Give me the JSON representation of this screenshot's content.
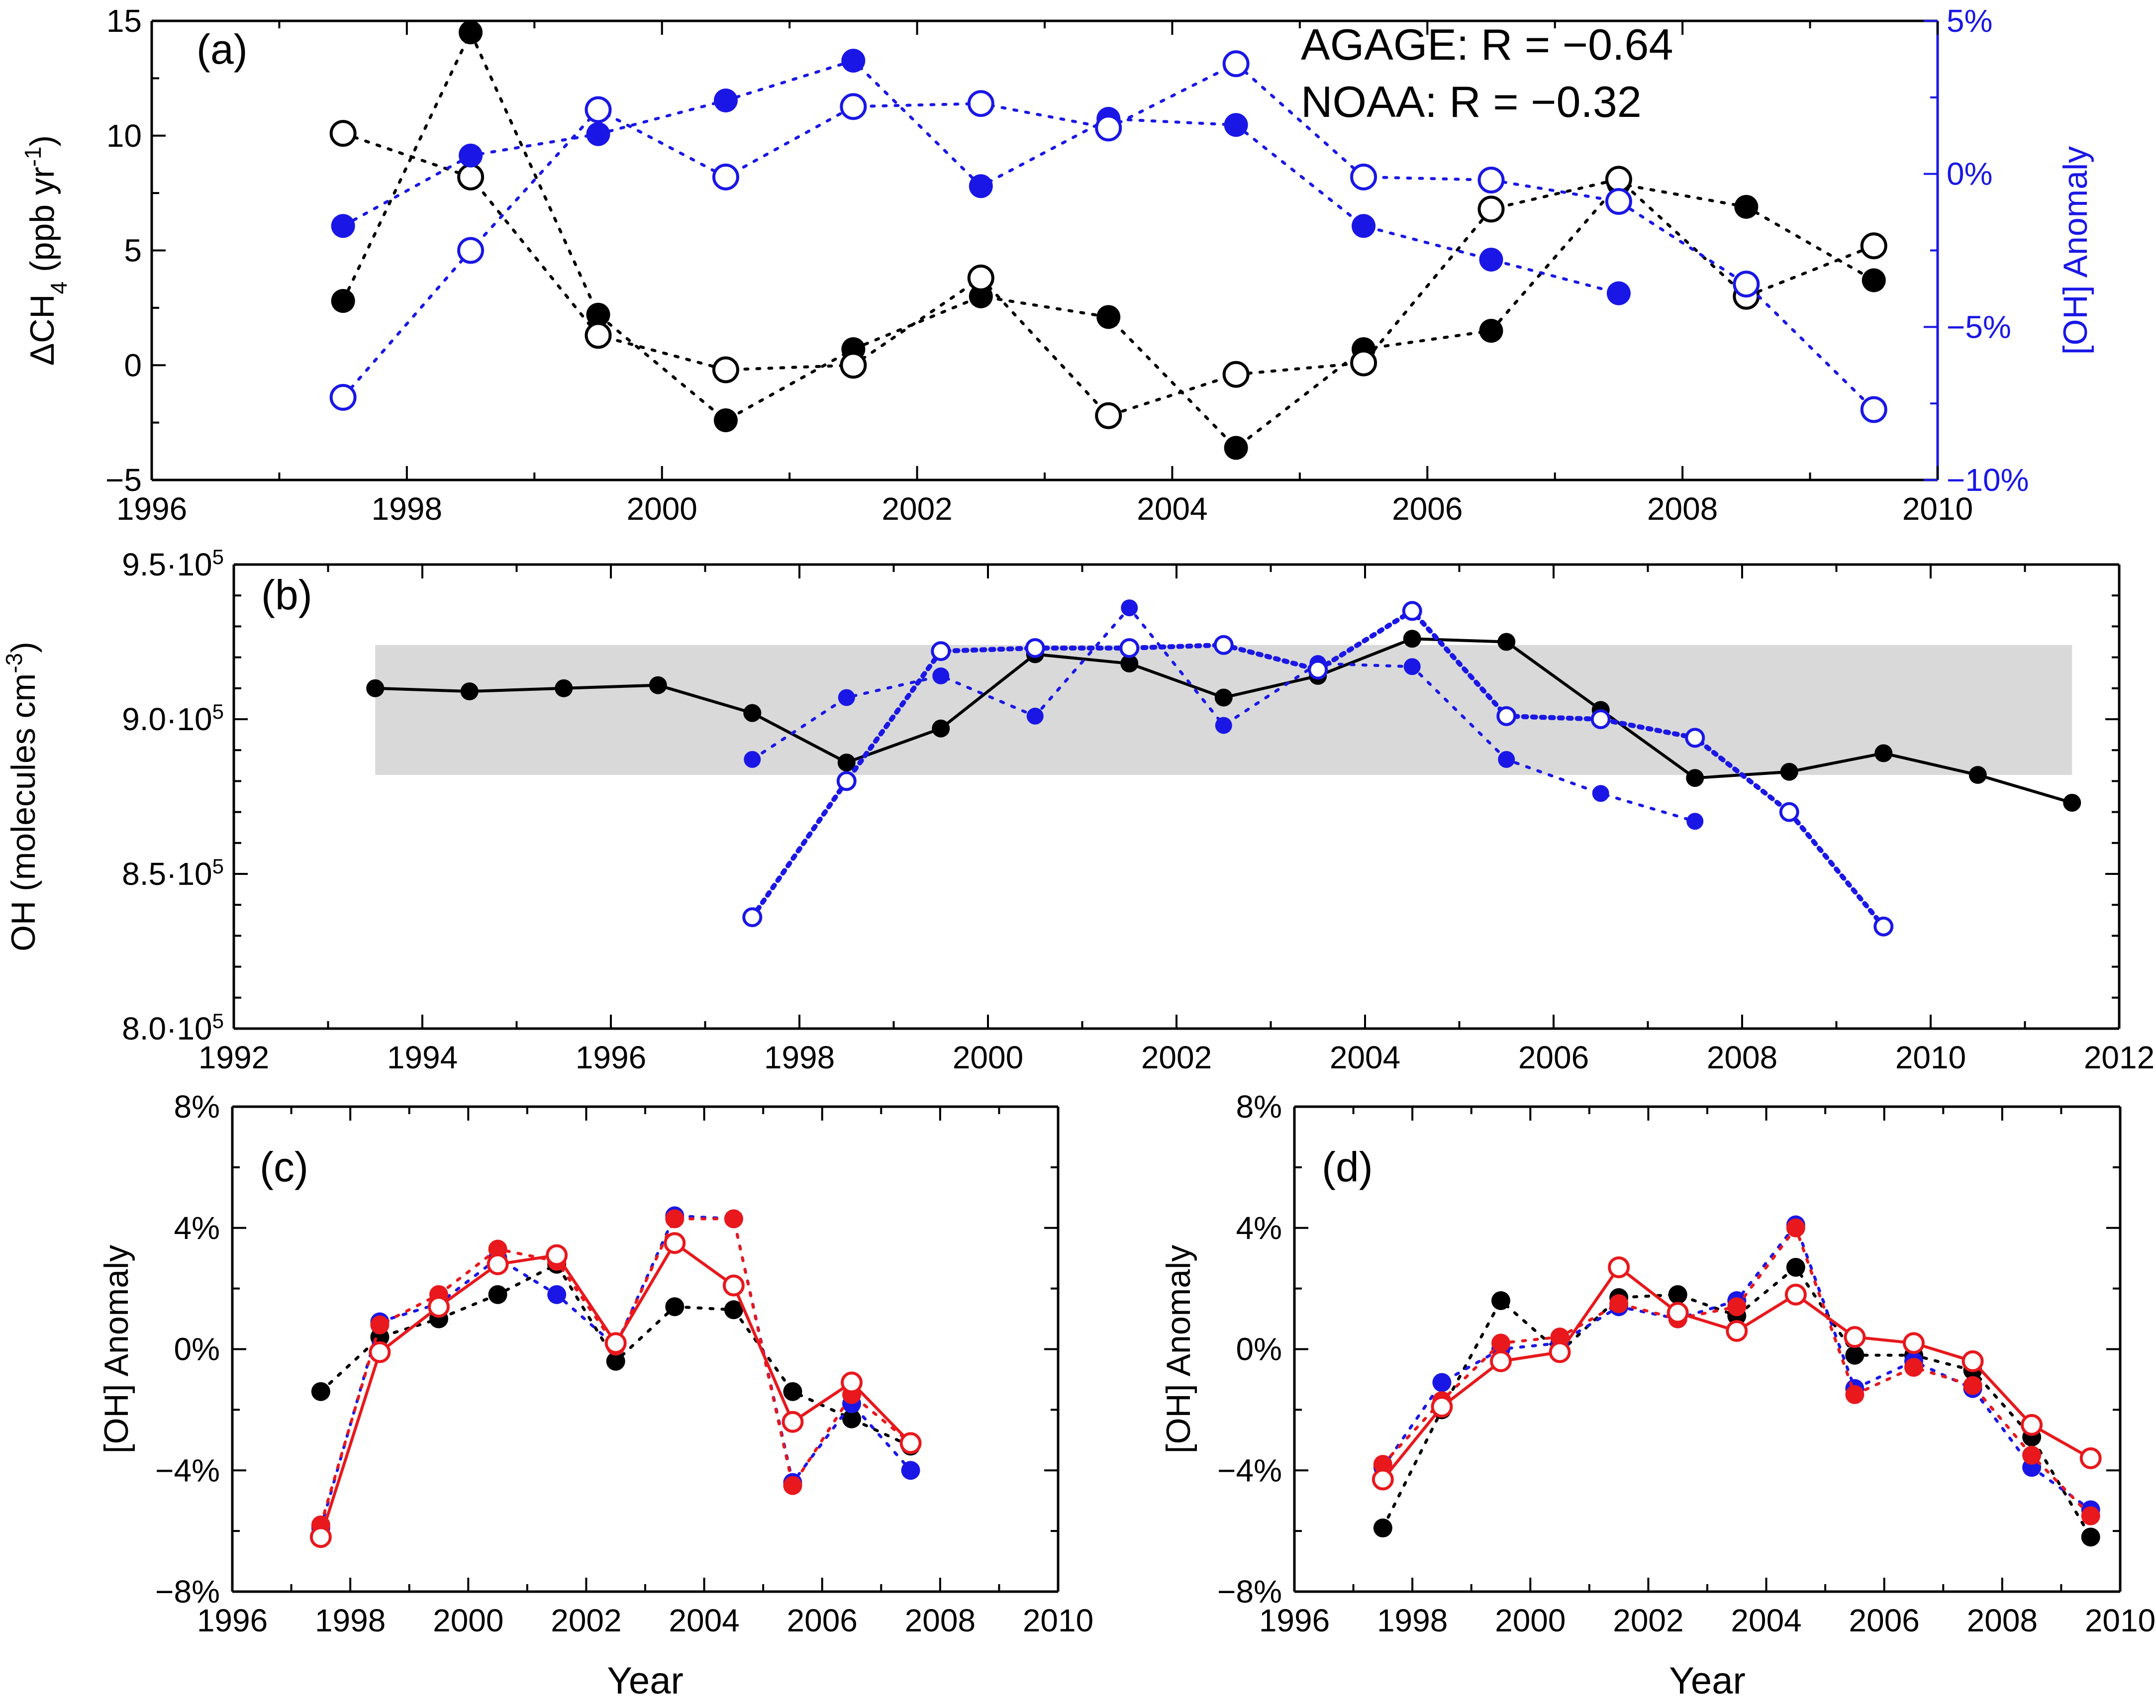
{
  "colors": {
    "black": "#000000",
    "blue": "#1a17e6",
    "red": "#e8181c",
    "gray_band": "#d9d9d9"
  },
  "chart_data": [
    {
      "panel": "(a)",
      "type": "scatter",
      "ylabel_prefix": "ΔCH",
      "ylabel_sub": "4",
      "ylabel_mid": " (ppb yr",
      "ylabel_sup": "-1",
      "ylabel_end": ")",
      "y2label": "[OH] Anomaly",
      "xlim": [
        1996,
        2010
      ],
      "ylim": [
        -5,
        15
      ],
      "y2lim": [
        -10,
        5
      ],
      "x_ticks": [
        "1996",
        "1998",
        "2000",
        "2002",
        "2004",
        "2006",
        "2008",
        "2010"
      ],
      "y_ticks": [
        "15",
        "10",
        "5",
        "0",
        "−5"
      ],
      "y2_ticks": [
        "5%",
        "0%",
        "−5%",
        "−10%"
      ],
      "annotations": [
        "AGAGE: R = −0.64",
        "NOAA:   R = −0.32"
      ],
      "series": [
        {
          "axis": "left",
          "color": "black",
          "marker": "filled",
          "x": [
            1997.5,
            1998.5,
            1999.5,
            2000.5,
            2001.5,
            2002.5,
            2003.5,
            2004.5,
            2005.5,
            2006.5,
            2007.5,
            2008.5,
            2009.5
          ],
          "y": [
            2.8,
            14.5,
            2.2,
            -2.4,
            0.7,
            3.0,
            2.1,
            -3.6,
            0.7,
            1.5,
            7.9,
            6.9,
            3.7
          ]
        },
        {
          "axis": "left",
          "color": "black",
          "marker": "open",
          "x": [
            1997.5,
            1998.5,
            1999.5,
            2000.5,
            2001.5,
            2002.5,
            2003.5,
            2004.5,
            2005.5,
            2006.5,
            2007.5,
            2008.5,
            2009.5
          ],
          "y": [
            10.1,
            8.2,
            1.3,
            -0.2,
            0.0,
            3.8,
            -2.2,
            -0.4,
            0.1,
            6.8,
            8.1,
            3.0,
            5.2
          ]
        },
        {
          "axis": "right",
          "color": "blue",
          "marker": "filled",
          "x": [
            1997.5,
            1998.5,
            1999.5,
            2000.5,
            2001.5,
            2002.5,
            2003.5,
            2004.5,
            2005.5,
            2006.5,
            2007.5
          ],
          "y": [
            -1.7,
            0.6,
            1.3,
            2.4,
            3.7,
            -0.4,
            1.8,
            1.6,
            -1.7,
            -2.8,
            -3.9
          ]
        },
        {
          "axis": "right",
          "color": "blue",
          "marker": "open",
          "x": [
            1997.5,
            1998.5,
            1999.5,
            2000.5,
            2001.5,
            2002.5,
            2003.5,
            2004.5,
            2005.5,
            2006.5,
            2007.5,
            2008.5,
            2009.5
          ],
          "y": [
            -7.3,
            -2.5,
            2.1,
            -0.1,
            2.2,
            2.3,
            1.5,
            3.6,
            -0.1,
            -0.2,
            -0.9,
            -3.6,
            -7.7
          ]
        }
      ]
    },
    {
      "panel": "(b)",
      "type": "line",
      "ylabel_prefix": "OH (molecules cm",
      "ylabel_sup": "-3",
      "ylabel_end": ")",
      "xlim": [
        1992,
        2012
      ],
      "ylim": [
        800000,
        950000
      ],
      "x_ticks": [
        "1992",
        "1994",
        "1996",
        "1998",
        "2000",
        "2002",
        "2004",
        "2006",
        "2008",
        "2010",
        "2012"
      ],
      "y_ticks": [
        {
          "base": "9.5·10",
          "exp": "5"
        },
        {
          "base": "9.0·10",
          "exp": "5"
        },
        {
          "base": "8.5·10",
          "exp": "5"
        },
        {
          "base": "8.0·10",
          "exp": "5"
        }
      ],
      "band": [
        1993.5,
        2011.5,
        882000,
        924000
      ],
      "series": [
        {
          "color": "black",
          "marker": "filled",
          "style": "solid",
          "x": [
            1993.5,
            1994.5,
            1995.5,
            1996.5,
            1997.5,
            1998.5,
            1999.5,
            2000.5,
            2001.5,
            2002.5,
            2003.5,
            2004.5,
            2005.5,
            2006.5,
            2007.5,
            2008.5,
            2009.5,
            2010.5,
            2011.5
          ],
          "y": [
            910000,
            909000,
            910000,
            911000,
            902000,
            886000,
            897000,
            921000,
            918000,
            907000,
            914000,
            926000,
            925000,
            903000,
            881000,
            883000,
            889000,
            882000,
            873000
          ]
        },
        {
          "color": "blue",
          "marker": "filled",
          "style": "dotted",
          "x": [
            1997.5,
            1998.5,
            1999.5,
            2000.5,
            2001.5,
            2002.5,
            2003.5,
            2004.5,
            2005.5,
            2006.5,
            2007.5
          ],
          "y": [
            887000,
            907000,
            914000,
            901000,
            936000,
            898000,
            918000,
            917000,
            887000,
            876000,
            867000
          ]
        },
        {
          "color": "blue",
          "marker": "open",
          "style": "dotted-thick",
          "x": [
            1997.5,
            1998.5,
            1999.5,
            2000.5,
            2001.5,
            2002.5,
            2003.5,
            2004.5,
            2005.5,
            2006.5,
            2007.5,
            2008.5,
            2009.5
          ],
          "y": [
            836000,
            880000,
            922000,
            923000,
            923000,
            924000,
            916000,
            935000,
            901000,
            900000,
            894000,
            870000,
            833000
          ]
        }
      ]
    },
    {
      "panel": "(c)",
      "type": "line",
      "ylabel": "[OH] Anomaly",
      "xlabel": "Year",
      "xlim": [
        1996,
        2010
      ],
      "ylim": [
        -8,
        8
      ],
      "x_ticks": [
        "1996",
        "1998",
        "2000",
        "2002",
        "2004",
        "2006",
        "2008",
        "2010"
      ],
      "y_ticks": [
        "8%",
        "4%",
        "0%",
        "−4%",
        "−8%"
      ],
      "x": [
        1997.5,
        1998.5,
        1999.5,
        2000.5,
        2001.5,
        2002.5,
        2003.5,
        2004.5,
        2005.5,
        2006.5,
        2007.5
      ],
      "series": [
        {
          "color": "black",
          "marker": "filled",
          "style": "dotted",
          "y": [
            -1.4,
            0.4,
            1.0,
            1.8,
            2.8,
            -0.4,
            1.4,
            1.3,
            -1.4,
            -2.3,
            -3.2
          ]
        },
        {
          "color": "blue",
          "marker": "filled",
          "style": "dotted",
          "y": [
            -5.9,
            0.9,
            1.5,
            3.0,
            1.8,
            0.1,
            4.4,
            4.3,
            -4.4,
            -1.8,
            -4.0
          ]
        },
        {
          "color": "red",
          "marker": "filled",
          "style": "dotted",
          "y": [
            -5.8,
            0.8,
            1.8,
            3.3,
            2.9,
            0.1,
            4.3,
            4.3,
            -4.5,
            -1.5,
            -3.1
          ]
        },
        {
          "color": "red",
          "marker": "open",
          "style": "solid",
          "y": [
            -6.2,
            -0.1,
            1.4,
            2.8,
            3.1,
            0.2,
            3.5,
            2.1,
            -2.4,
            -1.1,
            -3.1
          ]
        }
      ]
    },
    {
      "panel": "(d)",
      "type": "line",
      "ylabel": "[OH] Anomaly",
      "xlabel": "Year",
      "xlim": [
        1996,
        2010
      ],
      "ylim": [
        -8,
        8
      ],
      "x_ticks": [
        "1996",
        "1998",
        "2000",
        "2002",
        "2004",
        "2006",
        "2008",
        "2010"
      ],
      "y_ticks": [
        "8%",
        "4%",
        "0%",
        "−4%",
        "−8%"
      ],
      "x": [
        1997.5,
        1998.5,
        1999.5,
        2000.5,
        2001.5,
        2002.5,
        2003.5,
        2004.5,
        2005.5,
        2006.5,
        2007.5,
        2008.5,
        2009.5
      ],
      "series": [
        {
          "color": "black",
          "marker": "filled",
          "style": "dotted",
          "y": [
            -5.9,
            -2.0,
            1.6,
            -0.1,
            1.7,
            1.8,
            1.1,
            2.7,
            -0.2,
            -0.2,
            -0.7,
            -2.9,
            -6.2
          ]
        },
        {
          "color": "blue",
          "marker": "filled",
          "style": "dotted",
          "y": [
            -3.9,
            -1.1,
            0.0,
            0.2,
            1.4,
            1.0,
            1.6,
            4.1,
            -1.3,
            -0.4,
            -1.3,
            -3.9,
            -5.3
          ]
        },
        {
          "color": "red",
          "marker": "filled",
          "style": "dotted",
          "y": [
            -3.8,
            -1.7,
            0.2,
            0.4,
            1.5,
            1.0,
            1.4,
            4.0,
            -1.5,
            -0.6,
            -1.2,
            -3.5,
            -5.5
          ]
        },
        {
          "color": "red",
          "marker": "open",
          "style": "solid",
          "y": [
            -4.3,
            -1.9,
            -0.4,
            -0.1,
            2.7,
            1.2,
            0.6,
            1.8,
            0.4,
            0.2,
            -0.4,
            -2.5,
            -3.6
          ]
        }
      ]
    }
  ]
}
